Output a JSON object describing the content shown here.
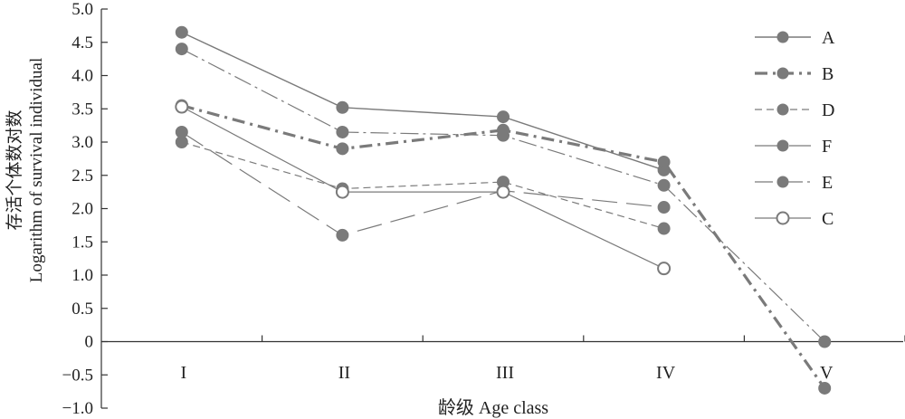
{
  "chart_data": {
    "type": "line",
    "categories": [
      "I",
      "II",
      "III",
      "IV",
      "V"
    ],
    "xlabel": "龄级 Age class",
    "ylabel_cn": "存活个体数对数",
    "ylabel_en": "Logarithm of survival individual",
    "ylim": [
      -1.0,
      5.0
    ],
    "yticks": [
      "5.0",
      "4.5",
      "4.0",
      "3.5",
      "3.0",
      "2.5",
      "2.0",
      "1.5",
      "1.0",
      "0.5",
      "0",
      "-0.5",
      "-1.0"
    ],
    "legend_position": "right",
    "series": [
      {
        "name": "A",
        "values": [
          4.65,
          3.52,
          3.38,
          2.58,
          null
        ],
        "dash": "",
        "width": 1.4,
        "marker": "filled",
        "color": "#7a7a7a"
      },
      {
        "name": "B",
        "values": [
          3.55,
          2.9,
          3.18,
          2.7,
          -0.7
        ],
        "dash": "14 6 3 6",
        "width": 3.2,
        "marker": "filled",
        "color": "#7a7a7a"
      },
      {
        "name": "D",
        "values": [
          3.0,
          2.3,
          2.4,
          1.7,
          null
        ],
        "dash": "8 5",
        "width": 1.2,
        "marker": "filled",
        "color": "#7a7a7a"
      },
      {
        "name": "F",
        "values": [
          3.15,
          1.6,
          2.27,
          2.02,
          null
        ],
        "dash": "28 10",
        "width": 1.2,
        "marker": "filled",
        "color": "#7a7a7a"
      },
      {
        "name": "E",
        "values": [
          4.4,
          3.15,
          3.1,
          2.35,
          0.0
        ],
        "dash": "20 5 3 5",
        "width": 1.2,
        "marker": "filled",
        "color": "#7a7a7a"
      },
      {
        "name": "C",
        "values": [
          3.53,
          2.25,
          2.25,
          1.1,
          null
        ],
        "dash": "",
        "width": 1.2,
        "marker": "hollow",
        "color": "#7a7a7a"
      }
    ]
  }
}
